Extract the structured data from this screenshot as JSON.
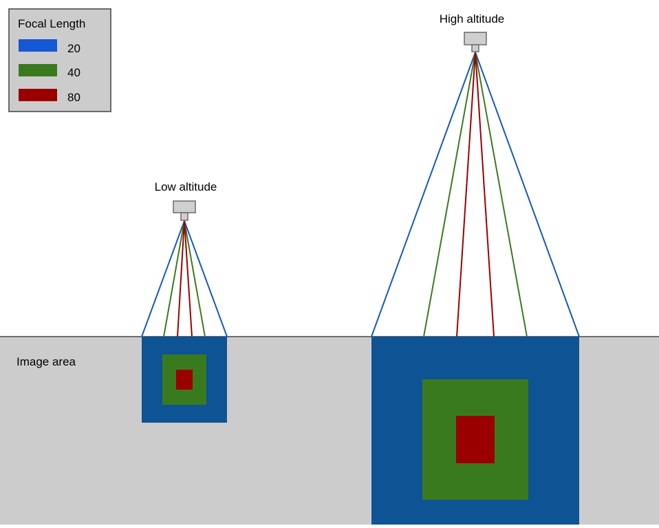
{
  "legend": {
    "title": "Focal Length",
    "items": [
      {
        "label": "20",
        "color": "#1557d4"
      },
      {
        "label": "40",
        "color": "#3a7a1e"
      },
      {
        "label": "80",
        "color": "#9a0000"
      }
    ]
  },
  "cameras": {
    "low": {
      "label": "Low altitude",
      "icon": "camera-icon"
    },
    "high": {
      "label": "High altitude",
      "icon": "camera-icon"
    }
  },
  "ground": {
    "label": "Image area",
    "color": "#cccccc"
  },
  "footprint_colors": {
    "20": "#0e5393",
    "40": "#3a7a1e",
    "80": "#9a0000"
  },
  "ray_colors": {
    "20": "#1557c0",
    "40": "#3a7a1e",
    "80": "#9a0000"
  }
}
